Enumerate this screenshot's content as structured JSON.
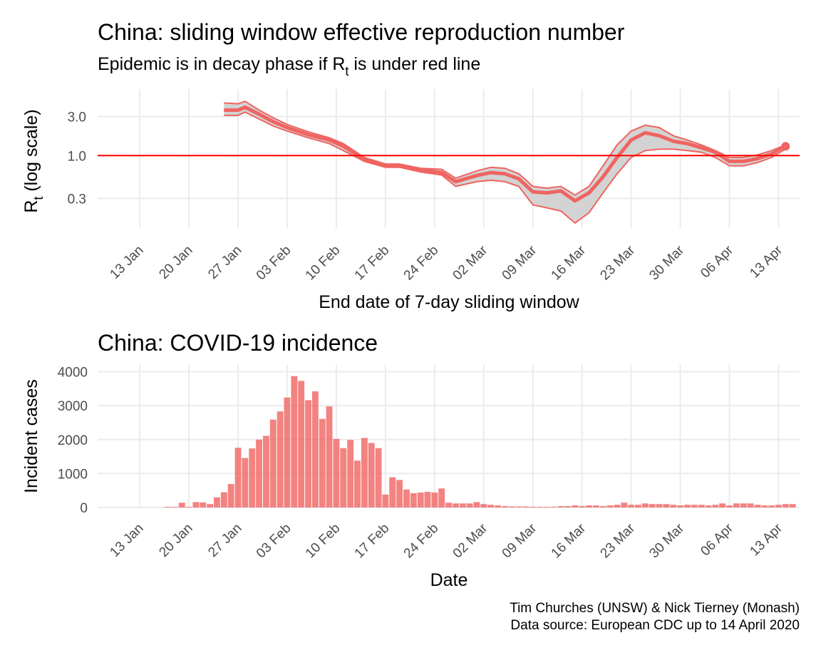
{
  "caption": {
    "line1": "Tim Churches (UNSW) & Nick Tierney (Monash)",
    "line2": "Data source: European CDC up to 14 April 2020"
  },
  "colors": {
    "accent": "#ef6461",
    "band": "#d3d3d3",
    "threshold": "#ff0000",
    "grid": "#ebebeb",
    "tick_text": "#4d4d4d"
  },
  "chart_data": [
    {
      "type": "line",
      "title": "China: sliding window effective reproduction number",
      "subtitle": {
        "prefix": "Epidemic is in decay phase if R",
        "subscript": "t",
        "suffix": "  is under red line"
      },
      "xlabel": "End date of 7-day sliding window",
      "ylabel": {
        "main": "R",
        "subscript": "t",
        "suffix": " (log scale)"
      },
      "y_scale": "log",
      "y_ticks": [
        0.3,
        1.0,
        3.0
      ],
      "y_tick_labels": [
        "0.3",
        "1.0",
        "3.0"
      ],
      "ylim": [
        0.13,
        6.5
      ],
      "xlim": [
        "2020-01-07",
        "2020-04-16"
      ],
      "x_ticks": [
        "2020-01-13",
        "2020-01-20",
        "2020-01-27",
        "2020-02-03",
        "2020-02-10",
        "2020-02-17",
        "2020-02-24",
        "2020-03-02",
        "2020-03-09",
        "2020-03-16",
        "2020-03-23",
        "2020-03-30",
        "2020-04-06",
        "2020-04-13"
      ],
      "x_tick_labels": [
        "13 Jan",
        "20 Jan",
        "27 Jan",
        "03 Feb",
        "10 Feb",
        "17 Feb",
        "24 Feb",
        "02 Mar",
        "09 Mar",
        "16 Mar",
        "23 Mar",
        "30 Mar",
        "06 Apr",
        "13 Apr"
      ],
      "reference_line": 1.0,
      "grid": true,
      "series": [
        {
          "x": [
            "2020-01-25",
            "2020-01-27",
            "2020-01-28",
            "2020-01-30",
            "2020-02-01",
            "2020-02-03",
            "2020-02-06",
            "2020-02-09",
            "2020-02-11",
            "2020-02-14",
            "2020-02-17",
            "2020-02-19",
            "2020-02-22",
            "2020-02-25",
            "2020-02-27",
            "2020-03-01",
            "2020-03-03",
            "2020-03-05",
            "2020-03-07",
            "2020-03-09",
            "2020-03-11",
            "2020-03-13",
            "2020-03-15",
            "2020-03-17",
            "2020-03-19",
            "2020-03-21",
            "2020-03-23",
            "2020-03-25",
            "2020-03-27",
            "2020-03-29",
            "2020-03-31",
            "2020-04-02",
            "2020-04-04",
            "2020-04-06",
            "2020-04-08",
            "2020-04-10",
            "2020-04-12",
            "2020-04-14"
          ],
          "mean": [
            3.6,
            3.6,
            3.9,
            3.2,
            2.6,
            2.2,
            1.8,
            1.55,
            1.3,
            0.9,
            0.75,
            0.75,
            0.67,
            0.62,
            0.48,
            0.57,
            0.62,
            0.6,
            0.52,
            0.36,
            0.35,
            0.37,
            0.28,
            0.35,
            0.55,
            0.95,
            1.55,
            1.9,
            1.75,
            1.5,
            1.4,
            1.25,
            1.1,
            0.85,
            0.85,
            0.92,
            1.05,
            1.3
          ],
          "lower": [
            3.1,
            3.1,
            3.4,
            2.8,
            2.3,
            2.0,
            1.65,
            1.4,
            1.15,
            0.85,
            0.72,
            0.72,
            0.63,
            0.58,
            0.42,
            0.48,
            0.5,
            0.48,
            0.42,
            0.25,
            0.23,
            0.21,
            0.15,
            0.2,
            0.35,
            0.6,
            0.95,
            1.15,
            1.2,
            1.2,
            1.15,
            1.1,
            0.95,
            0.75,
            0.75,
            0.82,
            0.95,
            1.2
          ],
          "upper": [
            4.4,
            4.3,
            4.6,
            3.6,
            2.9,
            2.4,
            1.95,
            1.65,
            1.4,
            0.95,
            0.79,
            0.79,
            0.7,
            0.68,
            0.53,
            0.65,
            0.72,
            0.7,
            0.6,
            0.42,
            0.4,
            0.42,
            0.33,
            0.42,
            0.75,
            1.35,
            2.0,
            2.35,
            2.2,
            1.75,
            1.55,
            1.35,
            1.15,
            0.95,
            0.95,
            1.02,
            1.15,
            1.35
          ]
        }
      ]
    },
    {
      "type": "bar",
      "title": "China: COVID-19 incidence",
      "xlabel": "Date",
      "ylabel": "Incident cases",
      "ylim": [
        0,
        4200
      ],
      "y_ticks": [
        0,
        1000,
        2000,
        3000,
        4000
      ],
      "y_tick_labels": [
        "0",
        "1000",
        "2000",
        "3000",
        "4000"
      ],
      "xlim": [
        "2020-01-07",
        "2020-04-16"
      ],
      "x_ticks": [
        "2020-01-13",
        "2020-01-20",
        "2020-01-27",
        "2020-02-03",
        "2020-02-10",
        "2020-02-17",
        "2020-02-24",
        "2020-03-02",
        "2020-03-09",
        "2020-03-16",
        "2020-03-23",
        "2020-03-30",
        "2020-04-06",
        "2020-04-13"
      ],
      "x_tick_labels": [
        "13 Jan",
        "20 Jan",
        "27 Jan",
        "03 Feb",
        "10 Feb",
        "17 Feb",
        "24 Feb",
        "02 Mar",
        "09 Mar",
        "16 Mar",
        "23 Mar",
        "30 Mar",
        "06 Apr",
        "13 Apr"
      ],
      "grid": true,
      "start_date": "2020-01-17",
      "values": [
        20,
        20,
        140,
        20,
        160,
        150,
        100,
        300,
        450,
        690,
        1760,
        1460,
        1740,
        2000,
        2110,
        2590,
        2830,
        3240,
        3870,
        3730,
        3160,
        3420,
        2610,
        2980,
        2020,
        1750,
        1990,
        1380,
        2050,
        1900,
        1750,
        380,
        890,
        810,
        530,
        420,
        440,
        460,
        440,
        560,
        140,
        120,
        120,
        120,
        160,
        100,
        80,
        60,
        40,
        30,
        30,
        30,
        20,
        20,
        20,
        20,
        40,
        40,
        60,
        40,
        60,
        60,
        40,
        60,
        80,
        140,
        80,
        80,
        120,
        100,
        100,
        100,
        80,
        60,
        80,
        80,
        80,
        60,
        80,
        120,
        60,
        120,
        120,
        120,
        80,
        60,
        60,
        80,
        100,
        100
      ]
    }
  ]
}
